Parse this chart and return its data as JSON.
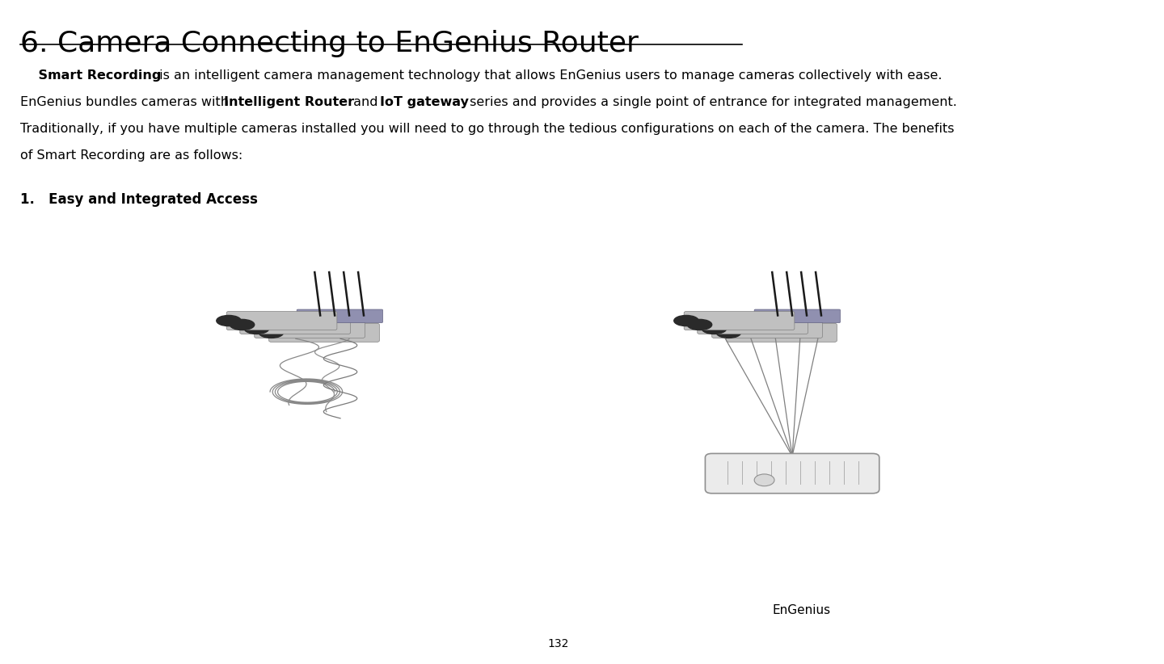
{
  "title": "6. Camera Connecting to EnGenius Router",
  "title_fontsize": 26,
  "background_color": "#ffffff",
  "page_number": "132",
  "list_item": "1.   Easy and Integrated Access",
  "list_item_fontsize": 12,
  "caption_right": "EnGenius",
  "caption_fontsize": 11,
  "text_fontsize": 11.5,
  "text_color": "#000000",
  "line1_parts": [
    {
      "text": "    Smart Recording",
      "bold": true
    },
    {
      "text": " is an intelligent camera management technology that allows EnGenius users to manage cameras collectively with ease.",
      "bold": false
    }
  ],
  "line2_parts": [
    {
      "text": "EnGenius bundles cameras with ",
      "bold": false
    },
    {
      "text": "Intelligent Router",
      "bold": true
    },
    {
      "text": " and ",
      "bold": false
    },
    {
      "text": "IoT gateway",
      "bold": true
    },
    {
      "text": " series and provides a single point of entrance for integrated management.",
      "bold": false
    }
  ],
  "line3_parts": [
    {
      "text": "Traditionally, if you have multiple cameras installed you will need to go through the tedious configurations on each of the camera. The benefits",
      "bold": false
    }
  ],
  "line4_parts": [
    {
      "text": "of Smart Recording are as follows:",
      "bold": false
    }
  ]
}
